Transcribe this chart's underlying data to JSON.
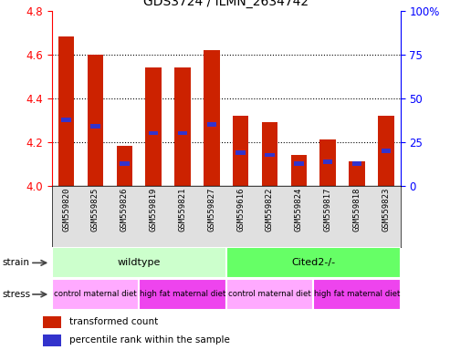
{
  "title": "GDS3724 / ILMN_2634742",
  "samples": [
    "GSM559820",
    "GSM559825",
    "GSM559826",
    "GSM559819",
    "GSM559821",
    "GSM559827",
    "GSM559616",
    "GSM559822",
    "GSM559824",
    "GSM559817",
    "GSM559818",
    "GSM559823"
  ],
  "bar_values": [
    4.68,
    4.6,
    4.18,
    4.54,
    4.54,
    4.62,
    4.32,
    4.29,
    4.14,
    4.21,
    4.11,
    4.32
  ],
  "blue_values": [
    4.3,
    4.27,
    4.1,
    4.24,
    4.24,
    4.28,
    4.15,
    4.14,
    4.1,
    4.11,
    4.1,
    4.16
  ],
  "ymin": 4.0,
  "ymax": 4.8,
  "yticks": [
    4.0,
    4.2,
    4.4,
    4.6,
    4.8
  ],
  "right_ytick_labels": [
    "0",
    "25",
    "50",
    "75",
    "100%"
  ],
  "right_ytick_vals": [
    4.0,
    4.2,
    4.4,
    4.6,
    4.8
  ],
  "bar_color": "#cc2200",
  "blue_color": "#3333cc",
  "strain_labels": [
    "wildtype",
    "Cited2-/-"
  ],
  "strain_ranges": [
    [
      0,
      6
    ],
    [
      6,
      12
    ]
  ],
  "strain_colors": [
    "#ccffcc",
    "#66ff66"
  ],
  "stress_labels": [
    "control maternal diet",
    "high fat maternal diet",
    "control maternal diet",
    "high fat maternal diet"
  ],
  "stress_ranges": [
    [
      0,
      3
    ],
    [
      3,
      6
    ],
    [
      6,
      9
    ],
    [
      9,
      12
    ]
  ],
  "stress_colors": [
    "#ffaaff",
    "#ee44ee",
    "#ffaaff",
    "#ee44ee"
  ],
  "legend_items": [
    "transformed count",
    "percentile rank within the sample"
  ],
  "legend_colors": [
    "#cc2200",
    "#3333cc"
  ],
  "bar_width": 0.55,
  "xlabel_fontsize": 6.5,
  "title_fontsize": 10
}
